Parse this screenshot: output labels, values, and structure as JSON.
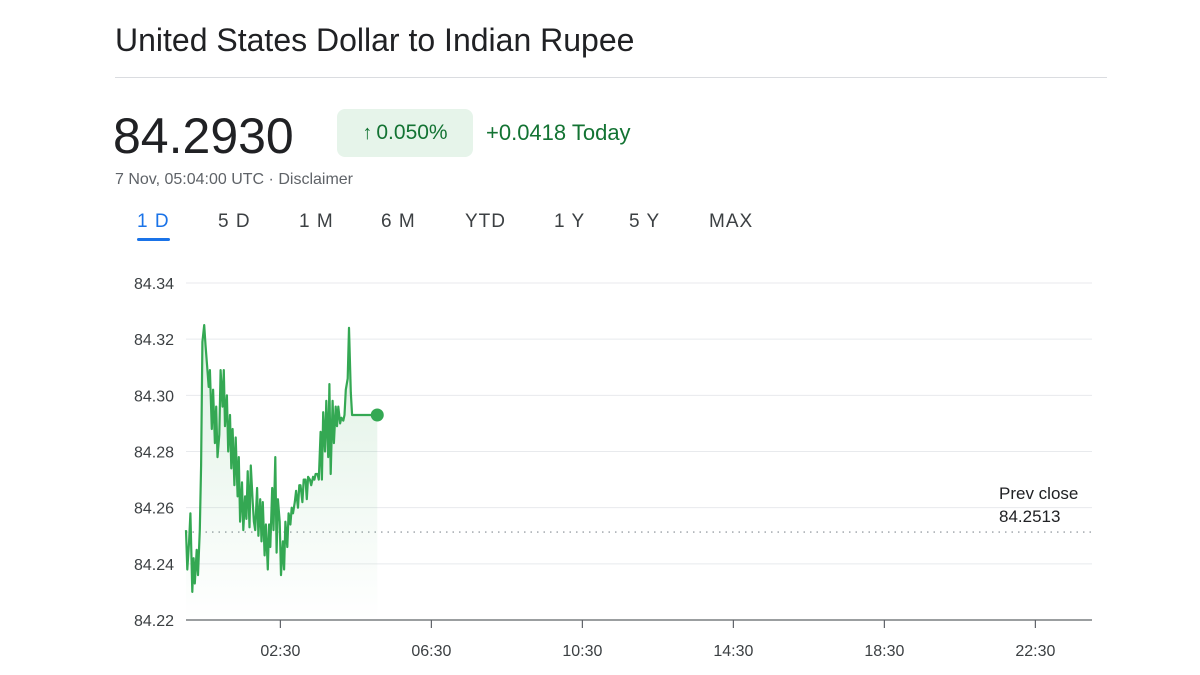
{
  "header": {
    "title": "United States Dollar to Indian Rupee",
    "price": "84.2930",
    "change_arrow": "↑",
    "change_percent": "0.050%",
    "change_today": "+0.0418 Today",
    "timestamp": "7 Nov, 05:04:00 UTC",
    "separator": " · ",
    "disclaimer": "Disclaimer"
  },
  "tabs": [
    {
      "label": "1 D",
      "active": true
    },
    {
      "label": "5 D",
      "active": false
    },
    {
      "label": "1 M",
      "active": false
    },
    {
      "label": "6 M",
      "active": false
    },
    {
      "label": "YTD",
      "active": false
    },
    {
      "label": "1 Y",
      "active": false
    },
    {
      "label": "5 Y",
      "active": false
    },
    {
      "label": "MAX",
      "active": false
    }
  ],
  "colors": {
    "line": "#34a853",
    "positive_text": "#137333",
    "positive_bg": "#e6f4ea",
    "active_tab": "#1a73e8"
  },
  "chart_data": {
    "type": "line",
    "title": "",
    "xlabel": "",
    "ylabel": "",
    "ylim": [
      84.22,
      84.34
    ],
    "xlim": [
      "00:00",
      "24:00"
    ],
    "yticks": [
      "84.34",
      "84.32",
      "84.30",
      "84.28",
      "84.26",
      "84.24",
      "84.22"
    ],
    "xticks": [
      "02:30",
      "06:30",
      "10:30",
      "14:30",
      "18:30",
      "22:30"
    ],
    "grid": true,
    "prev_close": {
      "label": "Prev close",
      "value": "84.2513"
    },
    "series": [
      {
        "x": [
          "00:00",
          "00:02",
          "00:05",
          "00:07",
          "00:10",
          "00:12",
          "00:14",
          "00:17",
          "00:19",
          "00:22",
          "00:24",
          "00:26",
          "00:29",
          "00:31",
          "00:36",
          "00:38",
          "00:41",
          "00:43",
          "00:46",
          "00:48",
          "00:50",
          "00:53",
          "00:55",
          "00:58",
          "01:00",
          "01:02",
          "01:05",
          "01:07",
          "01:10",
          "01:12",
          "01:14",
          "01:17",
          "01:19",
          "01:22",
          "01:24",
          "01:26",
          "01:29",
          "01:31",
          "01:34",
          "01:36",
          "01:38",
          "01:41",
          "01:43",
          "01:46",
          "01:48",
          "01:50",
          "01:53",
          "01:55",
          "01:58",
          "02:00",
          "02:02",
          "02:05",
          "02:07",
          "02:10",
          "02:12",
          "02:14",
          "02:17",
          "02:19",
          "02:22",
          "02:24",
          "02:26",
          "02:29",
          "02:31",
          "02:34",
          "02:36",
          "02:38",
          "02:41",
          "02:43",
          "02:46",
          "02:48",
          "02:50",
          "02:53",
          "02:55",
          "02:58",
          "03:00",
          "03:02",
          "03:05",
          "03:07",
          "03:10",
          "03:12",
          "03:14",
          "03:17",
          "03:19",
          "03:22",
          "03:24",
          "03:26",
          "03:29",
          "03:31",
          "03:34",
          "03:36",
          "03:38",
          "03:41",
          "03:43",
          "03:46",
          "03:48",
          "03:50",
          "03:53",
          "03:55",
          "03:58",
          "04:00",
          "04:02",
          "04:05",
          "04:07",
          "04:10",
          "04:12",
          "04:14",
          "04:17",
          "04:19",
          "04:22",
          "04:24",
          "04:26",
          "04:29",
          "04:31",
          "04:34",
          "04:36",
          "04:38",
          "04:41",
          "04:43",
          "04:46",
          "04:48",
          "04:50",
          "04:53",
          "04:55",
          "04:58",
          "05:00",
          "05:02",
          "05:04"
        ],
        "y": [
          84.252,
          84.238,
          84.248,
          84.258,
          84.23,
          84.242,
          84.233,
          84.245,
          84.236,
          84.252,
          84.275,
          84.319,
          84.325,
          84.318,
          84.303,
          84.309,
          84.288,
          84.302,
          84.283,
          84.296,
          84.278,
          84.286,
          84.309,
          84.296,
          84.309,
          84.289,
          84.3,
          84.28,
          84.293,
          84.274,
          84.288,
          84.268,
          84.285,
          84.264,
          84.278,
          84.255,
          84.269,
          84.252,
          84.264,
          84.256,
          84.273,
          84.253,
          84.275,
          84.262,
          84.255,
          84.252,
          84.267,
          84.25,
          84.263,
          84.248,
          84.262,
          84.243,
          84.254,
          84.238,
          84.254,
          84.246,
          84.267,
          84.252,
          84.278,
          84.244,
          84.263,
          84.255,
          84.236,
          84.248,
          84.238,
          84.255,
          84.246,
          84.258,
          84.254,
          84.26,
          84.258,
          84.262,
          84.266,
          84.26,
          84.268,
          84.268,
          84.262,
          84.27,
          84.27,
          84.263,
          84.271,
          84.27,
          84.268,
          84.271,
          84.27,
          84.272,
          84.272,
          84.27,
          84.287,
          84.27,
          84.294,
          84.28,
          84.298,
          84.278,
          84.304,
          84.272,
          84.298,
          84.283,
          84.296,
          84.289,
          84.296,
          84.29,
          84.292,
          84.291,
          84.293,
          84.302,
          84.306,
          84.324,
          84.301,
          84.293,
          84.293,
          84.293,
          84.293,
          84.293,
          84.293,
          84.293,
          84.293,
          84.293,
          84.293,
          84.293,
          84.293,
          84.293,
          84.293,
          84.293,
          84.293,
          84.293,
          84.293
        ]
      }
    ]
  }
}
